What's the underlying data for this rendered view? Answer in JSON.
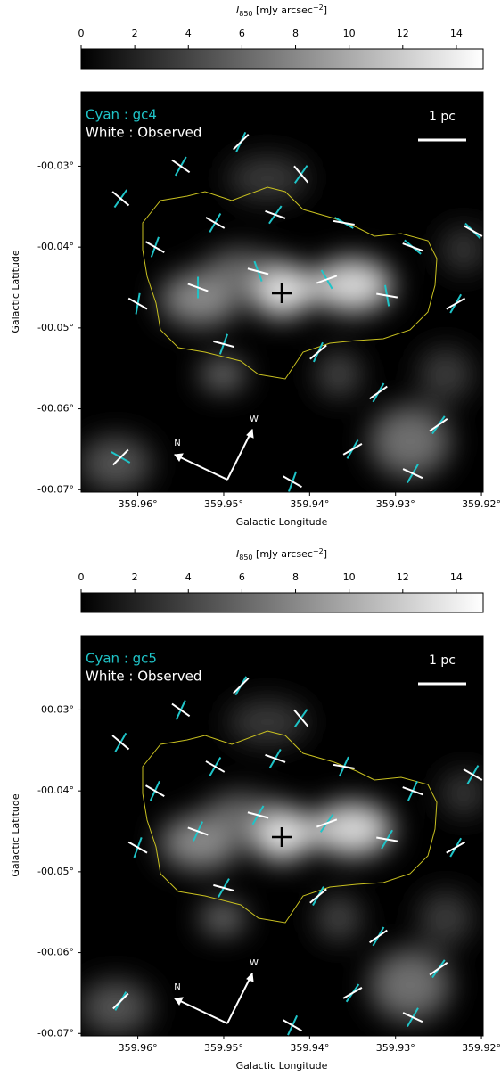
{
  "chart_data": [
    {
      "type": "vector-map",
      "colorbar_label": [
        "I",
        "850",
        " [mJy arcsec",
        "−2",
        "]"
      ],
      "clim": [
        0,
        15
      ],
      "cticks": [
        0,
        2,
        4,
        6,
        8,
        10,
        12,
        14
      ],
      "xlabel": "Galactic Longitude",
      "ylabel": "Galactic Latitude",
      "xlim": [
        359.9666,
        359.9198
      ],
      "xticks": [
        {
          "value": 359.96,
          "label": "359.96°"
        },
        {
          "value": 359.95,
          "label": "359.95°"
        },
        {
          "value": 359.94,
          "label": "359.94°"
        },
        {
          "value": 359.93,
          "label": "359.93°"
        },
        {
          "value": 359.92,
          "label": "359.92°"
        }
      ],
      "ylim": [
        -0.0703,
        -0.0208
      ],
      "yticks": [
        {
          "value": -0.03,
          "label": "-00.03°"
        },
        {
          "value": -0.04,
          "label": "-00.04°"
        },
        {
          "value": -0.05,
          "label": "-00.05°"
        },
        {
          "value": -0.06,
          "label": "-00.06°"
        },
        {
          "value": -0.07,
          "label": "-00.07°"
        }
      ],
      "scale_label": "1 pc",
      "compass": [
        "N",
        "W"
      ],
      "x": [
        359.962,
        359.955,
        359.948,
        359.941,
        359.958,
        359.951,
        359.944,
        359.936,
        359.928,
        359.921,
        359.96,
        359.953,
        359.946,
        359.938,
        359.931,
        359.923,
        359.95,
        359.939,
        359.932,
        359.925,
        359.935,
        359.928,
        359.962,
        359.942
      ],
      "y": [
        -0.034,
        -0.03,
        -0.027,
        -0.031,
        -0.04,
        -0.037,
        -0.036,
        -0.037,
        -0.04,
        -0.038,
        -0.047,
        -0.045,
        -0.043,
        -0.044,
        -0.046,
        -0.047,
        -0.052,
        -0.053,
        -0.058,
        -0.062,
        -0.065,
        -0.068,
        -0.066,
        -0.069
      ],
      "series": [
        {
          "label": "Cyan : gc4",
          "color": "#1fc4c8",
          "values": [
            35,
            30,
            25,
            35,
            20,
            30,
            35,
            -60,
            -50,
            -45,
            10,
            0,
            -20,
            -30,
            -10,
            30,
            20,
            25,
            30,
            35,
            30,
            30,
            -60,
            20
          ]
        },
        {
          "label": "White : Observed",
          "color": "#ffffff",
          "values": [
            -50,
            -55,
            45,
            -40,
            -60,
            -60,
            -70,
            -80,
            -70,
            -60,
            -60,
            -70,
            -75,
            70,
            -80,
            60,
            -75,
            50,
            55,
            55,
            60,
            -65,
            45,
            -60
          ]
        }
      ]
    },
    {
      "type": "vector-map",
      "colorbar_label": [
        "I",
        "850",
        " [mJy arcsec",
        "−2",
        "]"
      ],
      "clim": [
        0,
        15
      ],
      "cticks": [
        0,
        2,
        4,
        6,
        8,
        10,
        12,
        14
      ],
      "xlabel": "Galactic Longitude",
      "ylabel": "Galactic Latitude",
      "xlim": [
        359.9666,
        359.9198
      ],
      "xticks": [
        {
          "value": 359.96,
          "label": "359.96°"
        },
        {
          "value": 359.95,
          "label": "359.95°"
        },
        {
          "value": 359.94,
          "label": "359.94°"
        },
        {
          "value": 359.93,
          "label": "359.93°"
        },
        {
          "value": 359.92,
          "label": "359.92°"
        }
      ],
      "ylim": [
        -0.0703,
        -0.0208
      ],
      "yticks": [
        {
          "value": -0.03,
          "label": "-00.03°"
        },
        {
          "value": -0.04,
          "label": "-00.04°"
        },
        {
          "value": -0.05,
          "label": "-00.05°"
        },
        {
          "value": -0.06,
          "label": "-00.06°"
        },
        {
          "value": -0.07,
          "label": "-00.07°"
        }
      ],
      "scale_label": "1 pc",
      "compass": [
        "N",
        "W"
      ],
      "x": [
        359.962,
        359.955,
        359.948,
        359.941,
        359.958,
        359.951,
        359.944,
        359.936,
        359.928,
        359.921,
        359.96,
        359.953,
        359.946,
        359.938,
        359.931,
        359.923,
        359.95,
        359.939,
        359.932,
        359.925,
        359.935,
        359.928,
        359.962,
        359.942
      ],
      "y": [
        -0.034,
        -0.03,
        -0.027,
        -0.031,
        -0.04,
        -0.037,
        -0.036,
        -0.037,
        -0.04,
        -0.038,
        -0.047,
        -0.045,
        -0.043,
        -0.044,
        -0.046,
        -0.047,
        -0.052,
        -0.053,
        -0.058,
        -0.062,
        -0.065,
        -0.068,
        -0.066,
        -0.069
      ],
      "series": [
        {
          "label": "Cyan : gc5",
          "color": "#1fc4c8",
          "values": [
            30,
            25,
            30,
            35,
            25,
            30,
            30,
            25,
            25,
            30,
            20,
            25,
            30,
            35,
            30,
            30,
            30,
            30,
            30,
            35,
            35,
            30,
            30,
            25
          ]
        },
        {
          "label": "White : Observed",
          "color": "#ffffff",
          "values": [
            -50,
            -55,
            45,
            -40,
            -60,
            -60,
            -70,
            -80,
            -70,
            -60,
            -60,
            -70,
            -75,
            70,
            -80,
            60,
            -75,
            50,
            55,
            55,
            60,
            -65,
            45,
            -60
          ]
        }
      ]
    }
  ]
}
